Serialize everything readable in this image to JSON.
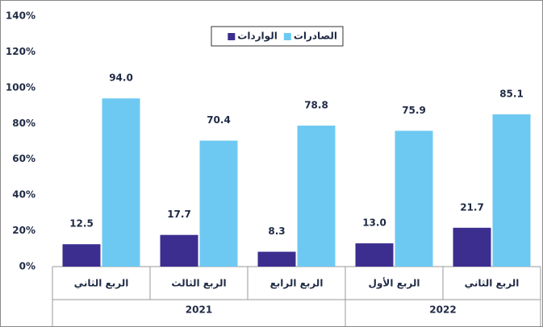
{
  "chart_data": {
    "type": "bar",
    "categories": [
      "الربع الثاني",
      "الربع الثالث",
      "الربع الرابع",
      "الربع الأول",
      "الربع الثاني"
    ],
    "groups": [
      {
        "label": "2021",
        "count": 3
      },
      {
        "label": "2022",
        "count": 2
      }
    ],
    "series": [
      {
        "name": "الواردات",
        "color": "#3b2e8f",
        "values": [
          12.5,
          17.7,
          8.3,
          13.0,
          21.7
        ],
        "value_labels": [
          "12.5",
          "17.7",
          "8.3",
          "13.0",
          "21.7"
        ]
      },
      {
        "name": "الصادرات",
        "color": "#6ec9f2",
        "values": [
          94.0,
          70.4,
          78.8,
          75.9,
          85.1
        ],
        "value_labels": [
          "94.0",
          "70.4",
          "78.8",
          "75.9",
          "85.1"
        ]
      }
    ],
    "ylim": [
      0,
      140
    ],
    "yticks": [
      {
        "value": 0,
        "label": "0%"
      },
      {
        "value": 20,
        "label": "20%"
      },
      {
        "value": 40,
        "label": "40%"
      },
      {
        "value": 60,
        "label": "60%"
      },
      {
        "value": 80,
        "label": "80%"
      },
      {
        "value": 100,
        "label": "100%"
      },
      {
        "value": 120,
        "label": "120%"
      },
      {
        "value": 140,
        "label": "140%"
      }
    ],
    "grid": false,
    "legend": "top"
  }
}
